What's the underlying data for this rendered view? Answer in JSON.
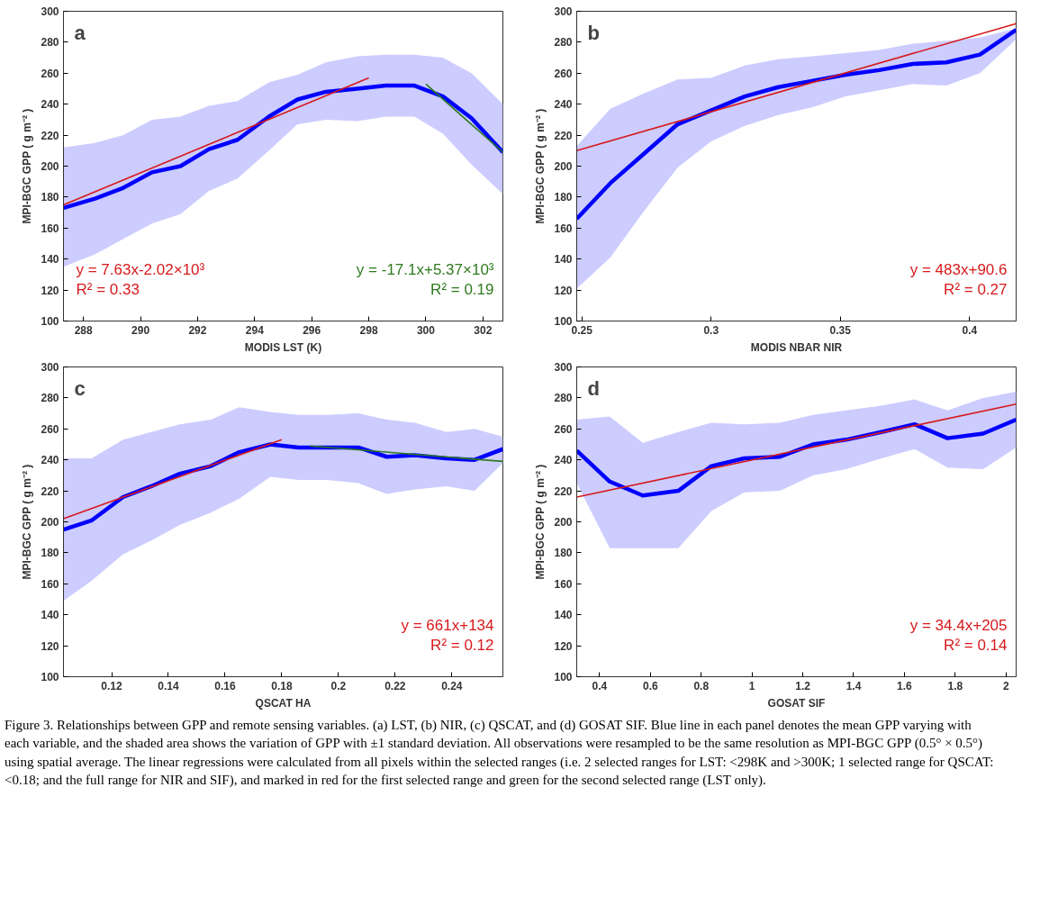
{
  "chart_data": [
    {
      "type": "line",
      "xlabel": "MODIS LST (K)",
      "ylabel": "MPI-BGC GPP ( g m⁻² )",
      "xlim": [
        287.3,
        302.7
      ],
      "ylim": [
        100,
        300
      ],
      "xticks": [
        288,
        290,
        292,
        294,
        296,
        298,
        300,
        302
      ],
      "yticks": [
        100,
        120,
        140,
        160,
        180,
        200,
        220,
        240,
        260,
        280,
        300
      ],
      "annotations": [
        "a",
        "y = 7.63x-2.02×10³",
        "R² = 0.33",
        "y = -17.1x+5.37×10³",
        "R² = 0.19"
      ],
      "series": [
        {
          "color": "#0000ff",
          "x": [
            287.3,
            288.4,
            289.4,
            290.4,
            291.4,
            292.4,
            293.4,
            294.5,
            295.5,
            296.5,
            297.6,
            298.6,
            299.6,
            300.6,
            301.6,
            302.7
          ],
          "values": [
            173,
            179,
            186,
            196,
            200,
            211,
            217,
            232,
            243,
            248,
            250,
            252,
            252,
            245,
            231,
            209
          ],
          "upper": [
            212,
            215,
            220,
            230,
            232,
            239,
            242,
            254,
            259,
            267,
            271,
            272,
            272,
            270,
            260,
            240
          ],
          "lower": [
            135,
            143,
            153,
            163,
            169,
            184,
            192,
            210,
            227,
            230,
            229,
            232,
            232,
            221,
            201,
            182
          ]
        },
        {
          "color": "#d7191c",
          "x": [
            287.3,
            298
          ],
          "values": [
            175,
            257
          ]
        },
        {
          "color": "#2e7a1e",
          "x": [
            300,
            302.7
          ],
          "values": [
            253,
            209
          ]
        }
      ]
    },
    {
      "type": "line",
      "xlabel": "MODIS NBAR NIR",
      "ylabel": "MPI-BGC GPP ( g m⁻² )",
      "xlim": [
        0.248,
        0.418
      ],
      "ylim": [
        100,
        300
      ],
      "xticks": [
        0.25,
        0.3,
        0.35,
        0.4
      ],
      "yticks": [
        100,
        120,
        140,
        160,
        180,
        200,
        220,
        240,
        260,
        280,
        300
      ],
      "annotations": [
        "b",
        "y = 483x+90.6",
        "R² = 0.27"
      ],
      "series": [
        {
          "color": "#0000ff",
          "x": [
            0.248,
            0.261,
            0.274,
            0.287,
            0.3,
            0.313,
            0.326,
            0.339,
            0.352,
            0.365,
            0.378,
            0.391,
            0.404,
            0.418
          ],
          "values": [
            166,
            189,
            208,
            227,
            236,
            245,
            251,
            255,
            259,
            262,
            266,
            267,
            272,
            288
          ],
          "upper": [
            213,
            237,
            247,
            256,
            257,
            265,
            269,
            271,
            273,
            275,
            279,
            281,
            283,
            289
          ],
          "lower": [
            121,
            141,
            171,
            199,
            216,
            226,
            233,
            238,
            245,
            249,
            253,
            252,
            260,
            282
          ]
        },
        {
          "color": "#d7191c",
          "x": [
            0.248,
            0.418
          ],
          "values": [
            210,
            292
          ]
        }
      ]
    },
    {
      "type": "line",
      "xlabel": "QSCAT HA",
      "ylabel": "MPI-BGC GPP ( g m⁻² )",
      "xlim": [
        0.103,
        0.258
      ],
      "ylim": [
        100,
        300
      ],
      "xticks": [
        0.12,
        0.14,
        0.16,
        0.18,
        0.2,
        0.22,
        0.24
      ],
      "yticks": [
        100,
        120,
        140,
        160,
        180,
        200,
        220,
        240,
        260,
        280,
        300
      ],
      "annotations": [
        "c",
        "y = 661x+134",
        "R² = 0.12"
      ],
      "series": [
        {
          "color": "#0000ff",
          "x": [
            0.103,
            0.113,
            0.124,
            0.134,
            0.144,
            0.155,
            0.165,
            0.176,
            0.186,
            0.196,
            0.207,
            0.217,
            0.227,
            0.238,
            0.248,
            0.258
          ],
          "values": [
            195,
            201,
            216,
            223,
            231,
            236,
            245,
            250,
            248,
            248,
            248,
            242,
            243,
            241,
            240,
            247
          ],
          "upper": [
            241,
            241,
            253,
            258,
            263,
            266,
            274,
            271,
            269,
            269,
            270,
            266,
            264,
            258,
            260,
            255
          ],
          "lower": [
            149,
            162,
            179,
            188,
            198,
            206,
            215,
            229,
            227,
            227,
            225,
            218,
            221,
            223,
            220,
            238
          ]
        },
        {
          "color": "#d7191c",
          "x": [
            0.103,
            0.18
          ],
          "values": [
            202,
            253
          ]
        },
        {
          "color": "#2e7a1e",
          "x": [
            0.19,
            0.258
          ],
          "values": [
            249,
            239
          ]
        }
      ]
    },
    {
      "type": "line",
      "xlabel": "GOSAT SIF",
      "ylabel": "MPI-BGC GPP ( g m⁻² )",
      "xlim": [
        0.31,
        2.04
      ],
      "ylim": [
        100,
        300
      ],
      "xticks": [
        0.4,
        0.6,
        0.8,
        1,
        1.2,
        1.4,
        1.6,
        1.8,
        2
      ],
      "yticks": [
        100,
        120,
        140,
        160,
        180,
        200,
        220,
        240,
        260,
        280,
        300
      ],
      "annotations": [
        "d",
        "y = 34.4x+205",
        "R² = 0.14"
      ],
      "series": [
        {
          "color": "#0000ff",
          "x": [
            0.31,
            0.44,
            0.57,
            0.71,
            0.84,
            0.97,
            1.11,
            1.24,
            1.37,
            1.51,
            1.64,
            1.77,
            1.91,
            2.04
          ],
          "values": [
            246,
            226,
            217,
            220,
            236,
            241,
            242,
            250,
            253,
            258,
            263,
            254,
            257,
            266
          ],
          "upper": [
            266,
            268,
            251,
            258,
            264,
            263,
            264,
            269,
            272,
            275,
            279,
            272,
            280,
            284
          ],
          "lower": [
            225,
            183,
            183,
            183,
            207,
            219,
            220,
            230,
            234,
            241,
            247,
            235,
            234,
            248
          ]
        },
        {
          "color": "#d7191c",
          "x": [
            0.31,
            2.04
          ],
          "values": [
            216,
            276
          ]
        }
      ]
    },
    {
      "type": "other",
      "annotations": [
        "Figure 3. Relationships between GPP and remote sensing variables. (a) LST, (b) NIR, (c) QSCAT, and (d) GOSAT SIF. Blue line in each panel denotes the mean GPP varying with each variable, and the shaded area shows the variation of GPP with ±1 standard deviation. All observations were resampled to be the same resolution as MPI-BGC GPP (0.5° × 0.5°) using spatial average. The linear regressions were calculated from all pixels within the selected ranges (i.e. 2 selected ranges for LST: <298K and >300K; 1 selected range for QSCAT: <0.18; and the full range for NIR and SIF), and marked in red for the first selected range and green for the second selected range (LST only)."
      ]
    }
  ]
}
